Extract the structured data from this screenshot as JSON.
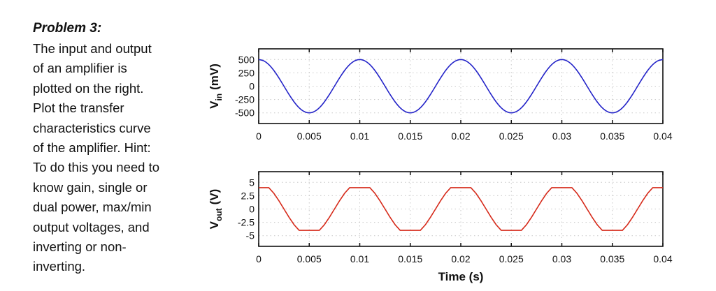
{
  "problem": {
    "title": "Problem 3:",
    "lines": [
      "The input and output",
      "of an amplifier is",
      "plotted on the right.",
      "Plot the transfer",
      "characteristics curve",
      "of the amplifier. Hint:",
      "To do this you need to",
      "know gain, single or",
      "dual power, max/min",
      "output voltages, and",
      "inverting or non-",
      "inverting."
    ]
  },
  "chart_data": [
    {
      "type": "line",
      "ylabel_main": "V",
      "ylabel_sub": "in",
      "ylabel_unit": "(mV)",
      "xlabel": "",
      "xlim": [
        0,
        0.04
      ],
      "ylim": [
        -700,
        700
      ],
      "xticks": [
        "0",
        "0.005",
        "0.01",
        "0.015",
        "0.02",
        "0.025",
        "0.03",
        "0.035",
        "0.04"
      ],
      "yticks": [
        "500",
        "250",
        "0",
        "-250",
        "-500"
      ],
      "ytick_values": [
        500,
        250,
        0,
        -250,
        -500
      ],
      "grid": true,
      "color": "#2323c8",
      "x_step": 0.0005,
      "series": [
        {
          "values_period": [
            500,
            475.5,
            404.5,
            293.9,
            154.5,
            0,
            -154.5,
            -293.9,
            -404.5,
            -475.5,
            -500,
            -475.5,
            -404.5,
            -293.9,
            -154.5,
            0,
            154.5,
            293.9,
            404.5,
            475.5
          ],
          "periods": 4
        }
      ]
    },
    {
      "type": "line",
      "ylabel_main": "V",
      "ylabel_sub": "out",
      "ylabel_unit": "(V)",
      "xlabel": "Time (s)",
      "xlim": [
        0,
        0.04
      ],
      "ylim": [
        -7,
        7
      ],
      "xticks": [
        "0",
        "0.005",
        "0.01",
        "0.015",
        "0.02",
        "0.025",
        "0.03",
        "0.035",
        "0.04"
      ],
      "yticks": [
        "5",
        "2.5",
        "0",
        "-2.5",
        "-5"
      ],
      "ytick_values": [
        5,
        2.5,
        0,
        -2.5,
        -5
      ],
      "grid": true,
      "color": "#d62a1a",
      "x_step": 0.0005,
      "series": [
        {
          "values_period": [
            4,
            4,
            4,
            2.94,
            1.55,
            0,
            -1.55,
            -2.94,
            -4,
            -4,
            -4,
            -4,
            -4,
            -2.94,
            -1.55,
            0,
            1.55,
            2.94,
            4,
            4
          ],
          "periods": 4
        }
      ]
    }
  ]
}
